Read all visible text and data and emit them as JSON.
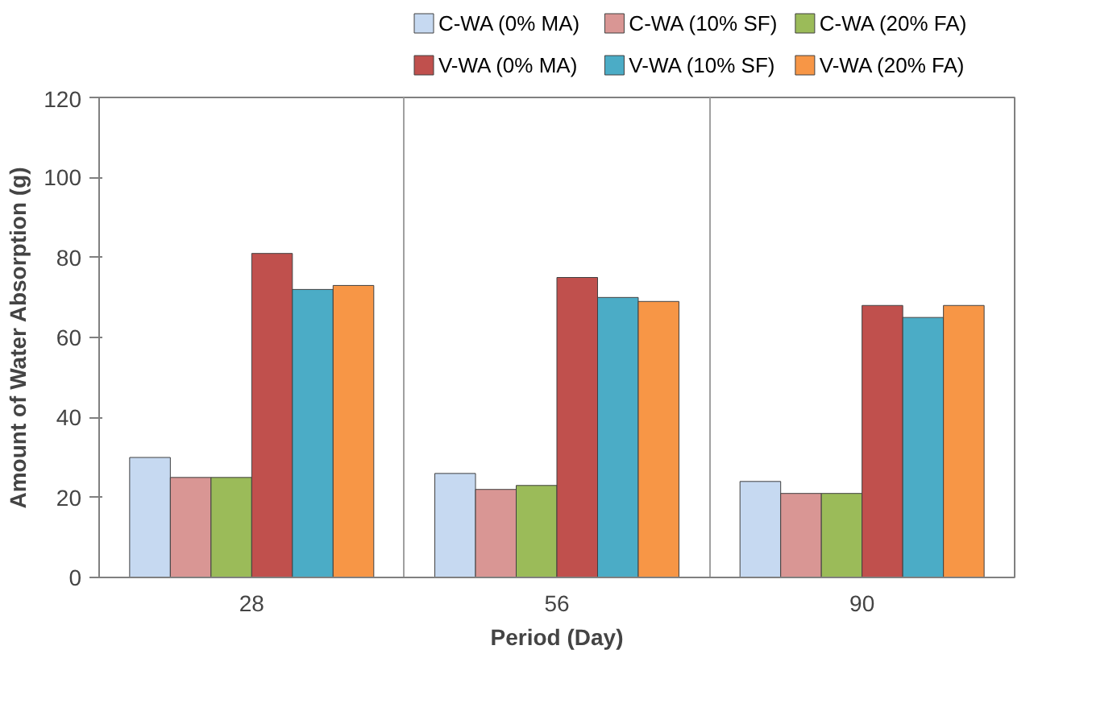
{
  "chart_data": {
    "type": "bar",
    "xlabel": "Period (Day)",
    "ylabel": "Amount of Water Absorption (g)",
    "categories": [
      "28",
      "56",
      "90"
    ],
    "series": [
      {
        "name": "C-WA (0% MA)",
        "color": "#c6d9f1",
        "values": [
          30,
          26,
          24
        ]
      },
      {
        "name": "C-WA (10% SF)",
        "color": "#d99694",
        "values": [
          25,
          22,
          21
        ]
      },
      {
        "name": "C-WA (20% FA)",
        "color": "#9bbb59",
        "values": [
          25,
          23,
          21
        ]
      },
      {
        "name": "V-WA (0% MA)",
        "color": "#c0504d",
        "values": [
          81,
          75,
          68
        ]
      },
      {
        "name": "V-WA (10% SF)",
        "color": "#4bacc6",
        "values": [
          72,
          70,
          65
        ]
      },
      {
        "name": "V-WA (20% FA)",
        "color": "#f79646",
        "values": [
          73,
          69,
          68
        ]
      }
    ],
    "ylim": [
      0,
      120
    ],
    "yticks": [
      0,
      20,
      40,
      60,
      80,
      100,
      120
    ],
    "grid": "x",
    "legend": "top"
  }
}
